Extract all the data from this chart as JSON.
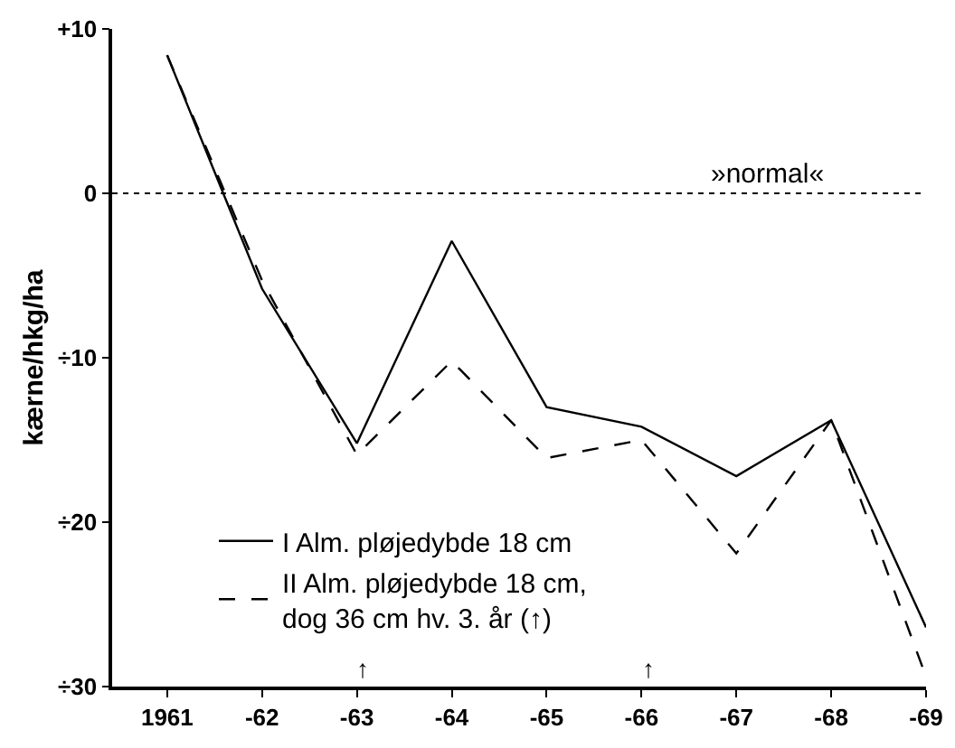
{
  "chart_data": {
    "type": "line",
    "ylabel": "kærne/hkg/ha",
    "categories": [
      "1961",
      "-62",
      "-63",
      "-64",
      "-65",
      "-66",
      "-67",
      "-68",
      "-69"
    ],
    "ylim": [
      -30,
      10
    ],
    "yticks": [
      {
        "value": 10,
        "label": "+10"
      },
      0,
      {
        "value": -10,
        "label": "÷10"
      },
      {
        "value": -20,
        "label": "÷20"
      },
      {
        "value": -30,
        "label": "÷30"
      }
    ],
    "series": [
      {
        "name": "I Alm. pløjedybde 18 cm",
        "color": "#000000",
        "line_style": "solid",
        "values": [
          8.4,
          -5.8,
          -15.2,
          -2.9,
          -13,
          -14.2,
          -17.2,
          -13.8,
          -26.4
        ]
      },
      {
        "name": "II Alm. pløjedybde 18 cm,\ndog 36 cm hv. 3. år (↑)",
        "color": "#000000",
        "line_style": "dashed",
        "values": [
          8.4,
          -5.3,
          -15.9,
          -10.2,
          -16.1,
          -15,
          -21.9,
          -13.8,
          -29.4
        ]
      }
    ],
    "ref_lines": [
      {
        "axis": "y",
        "value": 0,
        "label": "»normal«",
        "line_style": "dotted",
        "color": "#000000"
      }
    ],
    "annotations": [
      "↑",
      "↑"
    ],
    "grid": false,
    "legend": "bottom left",
    "marker": "none"
  }
}
